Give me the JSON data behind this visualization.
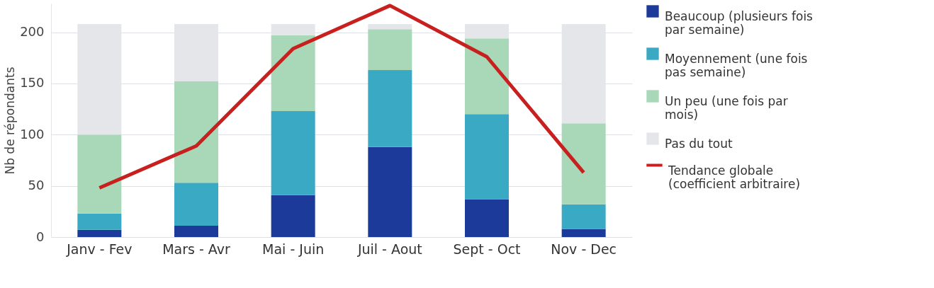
{
  "chart_data": {
    "type": "bar",
    "ylabel": "Nb de répondants",
    "categories": [
      "Janv - Fev",
      "Mars - Avr",
      "Mai - Juin",
      "Juil - Aout",
      "Sept - Oct",
      "Nov - Dec"
    ],
    "stacked": true,
    "ylim": [
      0,
      228
    ],
    "yticks": [
      0,
      50,
      100,
      150,
      200
    ],
    "grid": "y",
    "legend": "right",
    "series": [
      {
        "name": "Beaucoup (plusieurs fois par semaine)",
        "color": "#1b3a9a",
        "values": [
          7,
          11,
          41,
          88,
          37,
          8
        ]
      },
      {
        "name": "Moyennement (une fois pas semaine)",
        "color": "#3aa9c4",
        "values": [
          16,
          42,
          82,
          75,
          83,
          24
        ]
      },
      {
        "name": "Un peu (une fois par mois)",
        "color": "#a8d8b8",
        "values": [
          77,
          99,
          74,
          40,
          74,
          79
        ]
      },
      {
        "name": "Pas du tout",
        "color": "#e4e6ea",
        "values": [
          108,
          56,
          11,
          5,
          14,
          97
        ]
      },
      {
        "name": "Tendance globale (coefficient arbitraire)",
        "color": "#c8201e",
        "type": "line",
        "values": [
          48,
          89,
          184,
          226,
          176,
          63
        ]
      }
    ]
  }
}
